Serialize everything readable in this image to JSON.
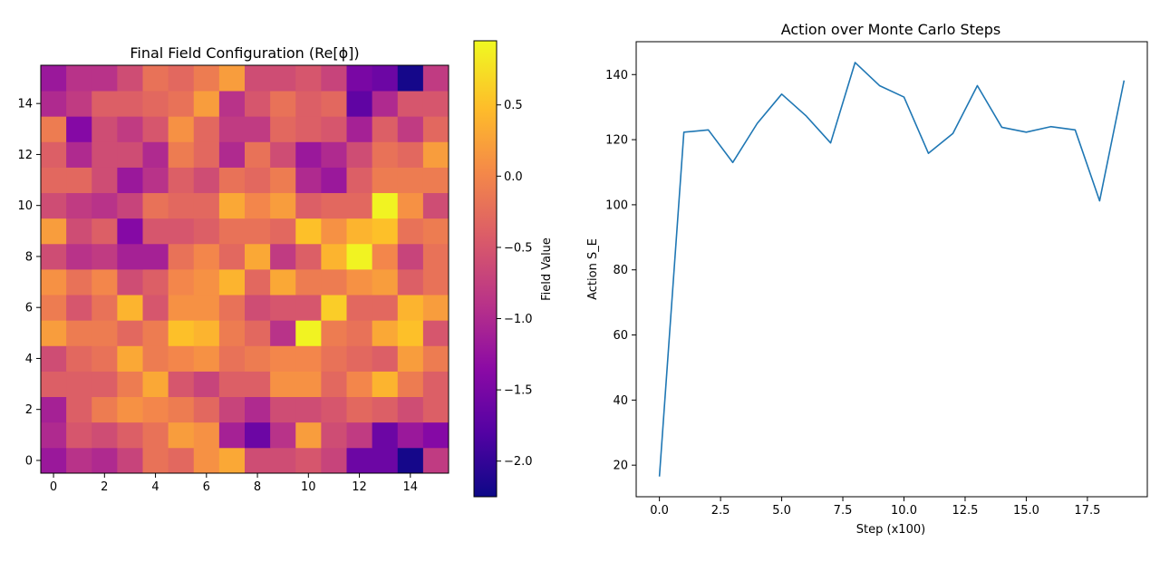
{
  "chart_data": [
    {
      "type": "heatmap",
      "title": "Final Field Configuration (Re[ϕ])",
      "xlabel": "",
      "ylabel": "",
      "colormap": "plasma",
      "vmin": -2.25,
      "vmax": 0.95,
      "xlim": [
        -0.5,
        15.5
      ],
      "ylim": [
        -0.5,
        15.5
      ],
      "xticks": [
        0,
        2,
        4,
        6,
        8,
        10,
        12,
        14
      ],
      "yticks": [
        0,
        2,
        4,
        6,
        8,
        10,
        12,
        14
      ],
      "colorbar": {
        "label": "Field Value",
        "ticks": [
          0.5,
          0.0,
          -0.5,
          -1.0,
          -1.5,
          -2.0
        ],
        "tick_labels": [
          "0.5",
          "0.0",
          "−0.5",
          "−1.0",
          "−1.5",
          "−2.0"
        ]
      },
      "values": [
        [
          -1.2,
          -0.9,
          -1.0,
          -0.7,
          -0.2,
          -0.3,
          0.1,
          0.3,
          -0.6,
          -0.6,
          -0.5,
          -0.7,
          -1.6,
          -1.6,
          -2.2,
          -0.8
        ],
        [
          -1.0,
          -0.5,
          -0.6,
          -0.4,
          -0.2,
          0.2,
          0.1,
          -1.1,
          -1.6,
          -0.9,
          0.2,
          -0.6,
          -0.8,
          -1.6,
          -1.2,
          -1.4
        ],
        [
          -1.1,
          -0.4,
          -0.1,
          0.1,
          0.0,
          -0.1,
          -0.3,
          -0.7,
          -1.0,
          -0.6,
          -0.6,
          -0.5,
          -0.3,
          -0.4,
          -0.6,
          -0.4
        ],
        [
          -0.4,
          -0.4,
          -0.4,
          -0.1,
          0.3,
          -0.5,
          -0.7,
          -0.4,
          -0.4,
          0.1,
          0.1,
          -0.3,
          0.0,
          0.4,
          -0.1,
          -0.4
        ],
        [
          -0.6,
          -0.3,
          -0.2,
          0.3,
          -0.1,
          0.0,
          0.1,
          -0.2,
          -0.1,
          0.0,
          0.0,
          -0.2,
          -0.3,
          -0.4,
          0.2,
          -0.1
        ],
        [
          0.2,
          -0.1,
          -0.1,
          -0.3,
          -0.1,
          0.5,
          0.4,
          -0.1,
          -0.3,
          -0.9,
          0.9,
          -0.1,
          -0.2,
          0.3,
          0.5,
          -0.5
        ],
        [
          -0.1,
          -0.5,
          -0.2,
          0.4,
          -0.5,
          0.1,
          0.1,
          -0.2,
          -0.6,
          -0.5,
          -0.5,
          0.6,
          -0.3,
          -0.3,
          0.4,
          0.2
        ],
        [
          0.1,
          -0.2,
          0.0,
          -0.6,
          -0.4,
          0.0,
          0.1,
          0.4,
          -0.3,
          0.3,
          -0.1,
          -0.1,
          0.1,
          0.2,
          -0.4,
          -0.2
        ],
        [
          -0.6,
          -0.9,
          -0.8,
          -1.1,
          -1.1,
          -0.2,
          0.0,
          -0.3,
          0.3,
          -0.8,
          -0.4,
          0.4,
          0.9,
          0.0,
          -0.7,
          -0.2
        ],
        [
          0.2,
          -0.6,
          -0.4,
          -1.4,
          -0.5,
          -0.5,
          -0.4,
          -0.2,
          -0.2,
          -0.3,
          0.5,
          0.1,
          0.4,
          0.5,
          -0.2,
          -0.1
        ],
        [
          -0.6,
          -0.8,
          -0.9,
          -0.7,
          -0.2,
          -0.3,
          -0.3,
          0.3,
          0.0,
          0.2,
          -0.4,
          -0.3,
          -0.3,
          0.9,
          0.1,
          -0.6
        ],
        [
          -0.3,
          -0.3,
          -0.6,
          -1.2,
          -0.9,
          -0.4,
          -0.6,
          -0.2,
          -0.3,
          -0.1,
          -1.0,
          -1.2,
          -0.4,
          -0.1,
          -0.1,
          -0.1
        ],
        [
          -0.4,
          -1.0,
          -0.6,
          -0.6,
          -1.0,
          -0.1,
          -0.3,
          -1.0,
          -0.2,
          -0.6,
          -1.2,
          -1.0,
          -0.6,
          -0.2,
          -0.3,
          0.2
        ],
        [
          -0.1,
          -1.4,
          -0.6,
          -0.8,
          -0.5,
          0.1,
          -0.3,
          -0.8,
          -0.8,
          -0.3,
          -0.4,
          -0.5,
          -1.1,
          -0.4,
          -0.8,
          -0.3
        ],
        [
          -1.0,
          -0.8,
          -0.4,
          -0.4,
          -0.3,
          -0.2,
          0.2,
          -0.9,
          -0.5,
          -0.2,
          -0.4,
          -0.3,
          -1.7,
          -1.0,
          -0.5,
          -0.5
        ],
        [
          -1.2,
          -0.9,
          -0.9,
          -0.6,
          -0.2,
          -0.3,
          -0.1,
          0.2,
          -0.6,
          -0.6,
          -0.5,
          -0.7,
          -1.5,
          -1.6,
          -2.2,
          -0.8
        ]
      ]
    },
    {
      "type": "line",
      "title": "Action over Monte Carlo Steps",
      "xlabel": "Step (x100)",
      "ylabel": "Action S_E",
      "xlim": [
        -0.95,
        19.95
      ],
      "ylim": [
        10.3,
        150.1
      ],
      "xticks": [
        0.0,
        2.5,
        5.0,
        7.5,
        10.0,
        12.5,
        15.0,
        17.5
      ],
      "xtick_labels": [
        "0.0",
        "2.5",
        "5.0",
        "7.5",
        "10.0",
        "12.5",
        "15.0",
        "17.5"
      ],
      "yticks": [
        20,
        40,
        60,
        80,
        100,
        120,
        140
      ],
      "grid": false,
      "series": [
        {
          "color": "#1f77b4",
          "x": [
            0,
            1,
            2,
            3,
            4,
            5,
            6,
            7,
            8,
            9,
            10,
            11,
            12,
            13,
            14,
            15,
            16,
            17,
            18,
            19
          ],
          "y": [
            16.5,
            122.3,
            123.0,
            113.0,
            125.0,
            134.0,
            127.3,
            119.0,
            143.7,
            136.6,
            133.1,
            115.8,
            121.9,
            136.6,
            123.8,
            122.3,
            124.0,
            123.0,
            101.2,
            138.2
          ]
        }
      ]
    }
  ]
}
